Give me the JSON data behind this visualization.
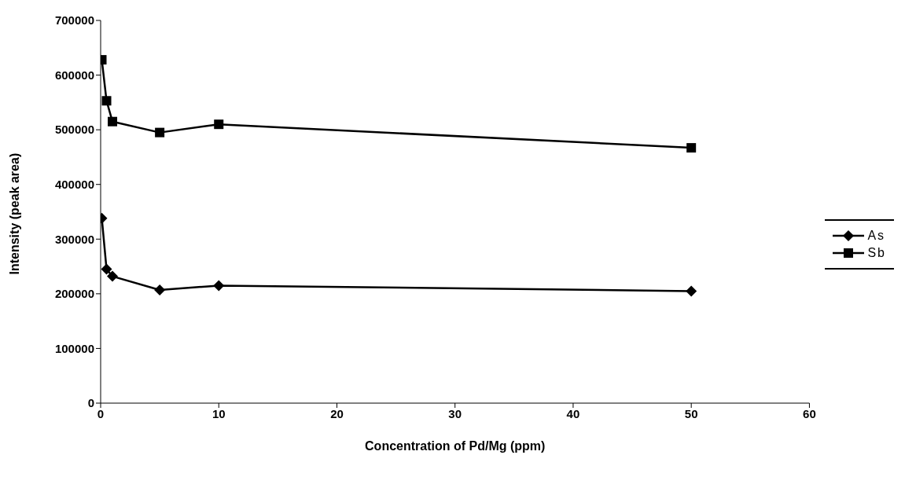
{
  "chart_data": {
    "type": "line",
    "xlabel": "Concentration of Pd/Mg (ppm)",
    "ylabel": "Intensity (peak area)",
    "xlim": [
      0,
      60
    ],
    "xticks": [
      0,
      10,
      20,
      30,
      40,
      50,
      60
    ],
    "ylim": [
      0,
      700000
    ],
    "yticks": [
      0,
      100000,
      200000,
      300000,
      400000,
      500000,
      600000,
      700000
    ],
    "grid": false,
    "legend": "right",
    "series": [
      {
        "name": "As",
        "color": "#000000",
        "marker": "diamond",
        "x": [
          0.1,
          0.5,
          1,
          5,
          10,
          50
        ],
        "values": [
          338000,
          245000,
          232000,
          207000,
          215000,
          205000
        ]
      },
      {
        "name": "Sb",
        "color": "#000000",
        "marker": "square",
        "x": [
          0.1,
          0.5,
          1,
          5,
          10,
          50
        ],
        "values": [
          628000,
          553000,
          515000,
          495000,
          510000,
          467000
        ]
      }
    ]
  }
}
